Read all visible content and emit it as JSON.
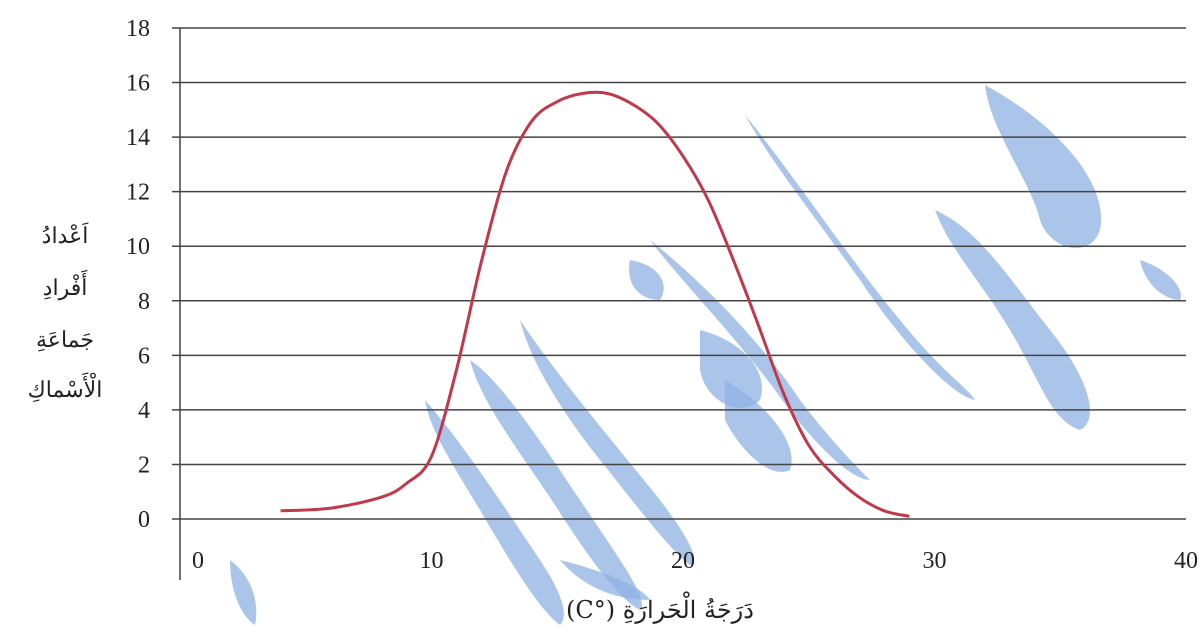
{
  "chart_data": {
    "type": "line",
    "title": "",
    "xlabel": "دَرَجَةُ الْحَرارَةِ (°C)",
    "ylabel_lines": [
      "اَعْدادُ",
      "أَفْرادِ",
      "جَماعَةِ",
      "الْأَسْماكِ"
    ],
    "xlim": [
      0,
      40
    ],
    "ylim": [
      0,
      18
    ],
    "x_ticks": [
      "0",
      "10",
      "20",
      "30",
      "40"
    ],
    "y_ticks": [
      "0",
      "2",
      "4",
      "6",
      "8",
      "10",
      "12",
      "14",
      "16",
      "18"
    ],
    "grid": true,
    "series": [
      {
        "color": "#c0394b",
        "x": [
          4,
          6,
          8,
          9,
          10,
          11,
          12,
          13,
          14,
          15,
          16,
          17,
          18,
          19,
          20,
          21,
          22,
          23,
          24,
          25,
          26,
          27,
          28,
          29
        ],
        "y": [
          0.3,
          0.4,
          0.8,
          1.3,
          2.3,
          5.5,
          9.5,
          12.8,
          14.6,
          15.3,
          15.6,
          15.6,
          15.2,
          14.5,
          13.3,
          11.7,
          9.5,
          7.1,
          4.6,
          2.7,
          1.6,
          0.8,
          0.3,
          0.1
        ]
      }
    ]
  },
  "watermark": {
    "color": "#8fb2e3"
  }
}
